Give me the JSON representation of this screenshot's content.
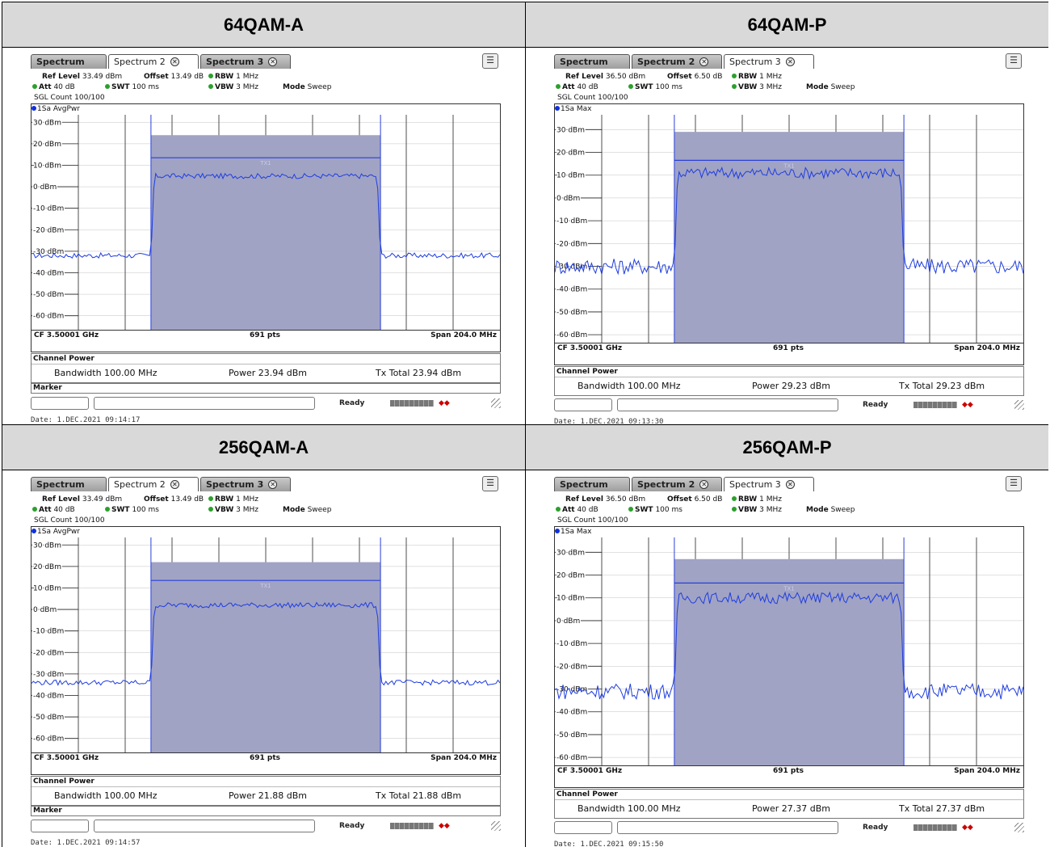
{
  "panels": [
    {
      "id": "64qam-a",
      "header": "64QAM-A",
      "tabs": [
        {
          "label": "Spectrum",
          "closable": false
        },
        {
          "label": "Spectrum 2",
          "closable": true,
          "active": true
        },
        {
          "label": "Spectrum 3",
          "closable": true
        }
      ],
      "ref_level_label": "Ref Level",
      "ref_level": "33.49 dBm",
      "offset_label": "Offset",
      "offset": "13.49 dB",
      "rbw_label": "RBW",
      "rbw": "1 MHz",
      "att_label": "Att",
      "att": "40 dB",
      "swt_label": "SWT",
      "swt": "100 ms",
      "vbw_label": "VBW",
      "vbw": "3 MHz",
      "mode_label": "Mode",
      "mode": "Sweep",
      "sgl_count": "SGL Count 100/100",
      "trace_label": "1Sa AvgPwr",
      "y_labels": [
        "30 dBm",
        "20 dBm",
        "10 dBm",
        "0 dBm",
        "-10 dBm",
        "-20 dBm",
        "-30 dBm",
        "-40 dBm",
        "-50 dBm",
        "-60 dBm"
      ],
      "tx_label": "TX1",
      "cf": "CF 3.50001 GHz",
      "pts": "691 pts",
      "span": "Span 204.0 MHz",
      "channel_power_title": "Channel Power",
      "bandwidth": "Bandwidth 100.00 MHz",
      "power": "Power 23.94 dBm",
      "tx_total": "Tx Total 23.94 dBm",
      "marker": "Marker",
      "ready": "Ready",
      "date": "Date: 1.DEC.2021  09:14:17",
      "noise_floor_dbm": -32,
      "signal_dbm": 5,
      "block_top_dbm": 24,
      "tx_line_dbm": 13.5,
      "ymax_dbm": 33.49
    },
    {
      "id": "64qam-p",
      "header": "64QAM-P",
      "tabs": [
        {
          "label": "Spectrum",
          "closable": false
        },
        {
          "label": "Spectrum 2",
          "closable": true
        },
        {
          "label": "Spectrum 3",
          "closable": true,
          "active": true
        }
      ],
      "ref_level_label": "Ref Level",
      "ref_level": "36.50 dBm",
      "offset_label": "Offset",
      "offset": "6.50 dB",
      "rbw_label": "RBW",
      "rbw": "1 MHz",
      "att_label": "Att",
      "att": "40 dB",
      "swt_label": "SWT",
      "swt": "100 ms",
      "vbw_label": "VBW",
      "vbw": "3 MHz",
      "mode_label": "Mode",
      "mode": "Sweep",
      "sgl_count": "SGL Count 100/100",
      "trace_label": "1Sa Max",
      "y_labels": [
        "30 dBm",
        "20 dBm",
        "10 dBm",
        "0 dBm",
        "-10 dBm",
        "-20 dBm",
        "-30 dBm",
        "-40 dBm",
        "-50 dBm",
        "-60 dBm"
      ],
      "tx_label": "TX1",
      "cf": "CF 3.50001 GHz",
      "pts": "691 pts",
      "span": "Span 204.0 MHz",
      "channel_power_title": "Channel Power",
      "bandwidth": "Bandwidth 100.00 MHz",
      "power": "Power 29.23 dBm",
      "tx_total": "Tx Total 29.23 dBm",
      "marker": "",
      "ready": "Ready",
      "date": "Date: 1.DEC.2021  09:13:30",
      "noise_floor_dbm": -30,
      "signal_dbm": 11,
      "block_top_dbm": 29,
      "tx_line_dbm": 16.5,
      "ymax_dbm": 36.5
    },
    {
      "id": "256qam-a",
      "header": "256QAM-A",
      "tabs": [
        {
          "label": "Spectrum",
          "closable": false
        },
        {
          "label": "Spectrum 2",
          "closable": true,
          "active": true
        },
        {
          "label": "Spectrum 3",
          "closable": true
        }
      ],
      "ref_level_label": "Ref Level",
      "ref_level": "33.49 dBm",
      "offset_label": "Offset",
      "offset": "13.49 dB",
      "rbw_label": "RBW",
      "rbw": "1 MHz",
      "att_label": "Att",
      "att": "40 dB",
      "swt_label": "SWT",
      "swt": "100 ms",
      "vbw_label": "VBW",
      "vbw": "3 MHz",
      "mode_label": "Mode",
      "mode": "Sweep",
      "sgl_count": "SGL Count 100/100",
      "trace_label": "1Sa AvgPwr",
      "y_labels": [
        "30 dBm",
        "20 dBm",
        "10 dBm",
        "0 dBm",
        "-10 dBm",
        "-20 dBm",
        "-30 dBm",
        "-40 dBm",
        "-50 dBm",
        "-60 dBm"
      ],
      "tx_label": "TX1",
      "cf": "CF 3.50001 GHz",
      "pts": "691 pts",
      "span": "Span 204.0 MHz",
      "channel_power_title": "Channel Power",
      "bandwidth": "Bandwidth 100.00 MHz",
      "power": "Power 21.88 dBm",
      "tx_total": "Tx Total 21.88 dBm",
      "marker": "Marker",
      "ready": "Ready",
      "date": "Date: 1.DEC.2021  09:14:57",
      "noise_floor_dbm": -34,
      "signal_dbm": 2,
      "block_top_dbm": 22,
      "tx_line_dbm": 13.5,
      "ymax_dbm": 33.49
    },
    {
      "id": "256qam-p",
      "header": "256QAM-P",
      "tabs": [
        {
          "label": "Spectrum",
          "closable": false
        },
        {
          "label": "Spectrum 2",
          "closable": true
        },
        {
          "label": "Spectrum 3",
          "closable": true,
          "active": true
        }
      ],
      "ref_level_label": "Ref Level",
      "ref_level": "36.50 dBm",
      "offset_label": "Offset",
      "offset": "6.50 dB",
      "rbw_label": "RBW",
      "rbw": "1 MHz",
      "att_label": "Att",
      "att": "40 dB",
      "swt_label": "SWT",
      "swt": "100 ms",
      "vbw_label": "VBW",
      "vbw": "3 MHz",
      "mode_label": "Mode",
      "mode": "Sweep",
      "sgl_count": "SGL Count 100/100",
      "trace_label": "1Sa Max",
      "y_labels": [
        "30 dBm",
        "20 dBm",
        "10 dBm",
        "0 dBm",
        "-10 dBm",
        "-20 dBm",
        "-30 dBm",
        "-40 dBm",
        "-50 dBm",
        "-60 dBm"
      ],
      "tx_label": "TX1",
      "cf": "CF 3.50001 GHz",
      "pts": "691 pts",
      "span": "Span 204.0 MHz",
      "channel_power_title": "Channel Power",
      "bandwidth": "Bandwidth 100.00 MHz",
      "power": "Power 27.37 dBm",
      "tx_total": "Tx Total 27.37 dBm",
      "marker": "",
      "ready": "Ready",
      "date": "Date: 1.DEC.2021  09:15:50",
      "noise_floor_dbm": -31,
      "signal_dbm": 10,
      "block_top_dbm": 27,
      "tx_line_dbm": 16.5,
      "ymax_dbm": 36.5
    }
  ],
  "colors": {
    "header_bg": "#d9d9d9",
    "block": "#a0a3c4",
    "trace": "#1f3de0",
    "tx_line": "#2a3fd8",
    "grid": "#222222"
  }
}
